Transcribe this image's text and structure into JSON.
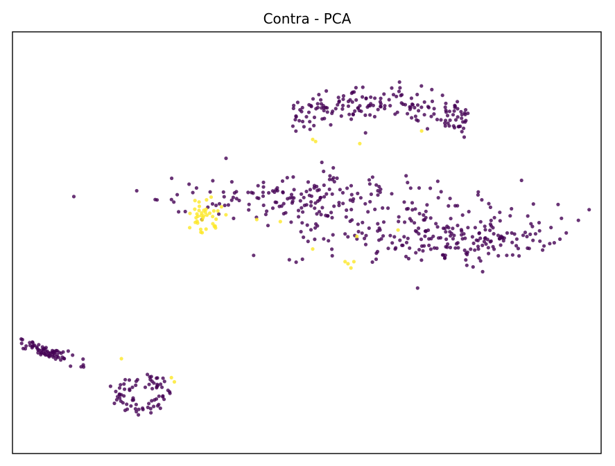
{
  "chart_data": {
    "type": "scatter",
    "title": "Contra - PCA",
    "xlabel": "",
    "ylabel": "",
    "xlim": [
      -10,
      10
    ],
    "ylim": [
      -10,
      10
    ],
    "axes_ticks": "hidden",
    "grid": false,
    "legend": "none",
    "colors": {
      "class_0": "#440154",
      "class_1": "#fde725"
    },
    "clusters": [
      {
        "class": 0,
        "center": [
          -8.8,
          -5.2
        ],
        "spread": [
          1.0,
          0.2
        ],
        "count": 70,
        "rotation": -0.45
      },
      {
        "class": 0,
        "center": [
          -5.6,
          -7.2
        ],
        "spread": [
          0.55,
          0.7
        ],
        "count": 75,
        "ring": true
      },
      {
        "class": 0,
        "center": [
          2.5,
          5.9
        ],
        "spread": [
          3.0,
          1.2
        ],
        "count": 180,
        "arc": true
      },
      {
        "class": 0,
        "center": [
          0.0,
          2.2
        ],
        "spread": [
          3.6,
          0.9
        ],
        "count": 170
      },
      {
        "class": 0,
        "center": [
          4.5,
          0.3
        ],
        "spread": [
          3.5,
          1.3
        ],
        "count": 250
      },
      {
        "class": 1,
        "center": [
          -3.5,
          1.3
        ],
        "spread": [
          0.4,
          0.65
        ],
        "count": 35
      }
    ],
    "highlight_points": [
      {
        "class": 1,
        "x": -6.3,
        "y": -5.5
      },
      {
        "class": 1,
        "x": -4.6,
        "y": -6.4
      },
      {
        "class": 1,
        "x": -4.5,
        "y": -6.6
      },
      {
        "class": 1,
        "x": 0.3,
        "y": 4.8
      },
      {
        "class": 1,
        "x": 0.2,
        "y": 4.9
      },
      {
        "class": 1,
        "x": 1.8,
        "y": 4.7
      },
      {
        "class": 1,
        "x": 3.9,
        "y": 5.3
      },
      {
        "class": 1,
        "x": -1.7,
        "y": 1.1
      },
      {
        "class": 1,
        "x": -0.9,
        "y": 1.0
      },
      {
        "class": 1,
        "x": 1.7,
        "y": 0.3
      },
      {
        "class": 1,
        "x": 1.3,
        "y": -0.9
      },
      {
        "class": 1,
        "x": 1.6,
        "y": -0.9
      },
      {
        "class": 1,
        "x": 1.4,
        "y": -1.0
      },
      {
        "class": 1,
        "x": 0.2,
        "y": -0.3
      },
      {
        "class": 1,
        "x": 1.5,
        "y": -1.2
      },
      {
        "class": 1,
        "x": 3.1,
        "y": 0.6
      },
      {
        "class": 1,
        "x": -2.9,
        "y": 1.7
      },
      {
        "class": 1,
        "x": -3.6,
        "y": 0.5
      },
      {
        "class": 1,
        "x": -3.1,
        "y": 0.7
      },
      {
        "class": 1,
        "x": -3.8,
        "y": 2.0
      }
    ]
  }
}
